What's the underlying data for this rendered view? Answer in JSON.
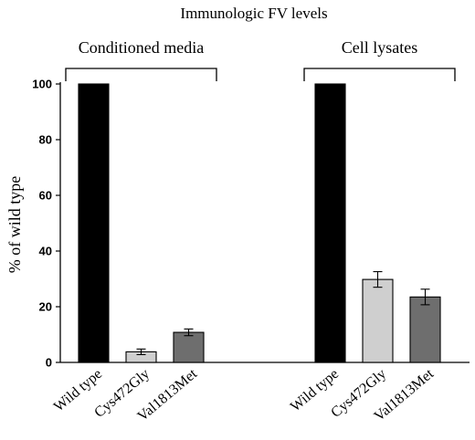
{
  "chart_data": {
    "type": "bar",
    "title": "Immunologic FV levels",
    "ylabel": "% of wild type",
    "xlabel": "",
    "ylim": [
      0,
      100
    ],
    "yticks": [
      0,
      20,
      40,
      60,
      80,
      100
    ],
    "groups": [
      {
        "name": "Conditioned media",
        "categories": [
          "Wild type",
          "Cys472Gly",
          "Val1813Met"
        ],
        "values": [
          100,
          3.8,
          10.8
        ],
        "errors": [
          null,
          1.0,
          1.2
        ]
      },
      {
        "name": "Cell lysates",
        "categories": [
          "Wild type",
          "Cys472Gly",
          "Val1813Met"
        ],
        "values": [
          100,
          29.8,
          23.5
        ],
        "errors": [
          null,
          2.8,
          2.8
        ]
      }
    ],
    "colors": {
      "Wild type": "#000000",
      "Cys472Gly": "#cfcfcf",
      "Val1813Met": "#6e6e6e"
    },
    "grid": false
  }
}
